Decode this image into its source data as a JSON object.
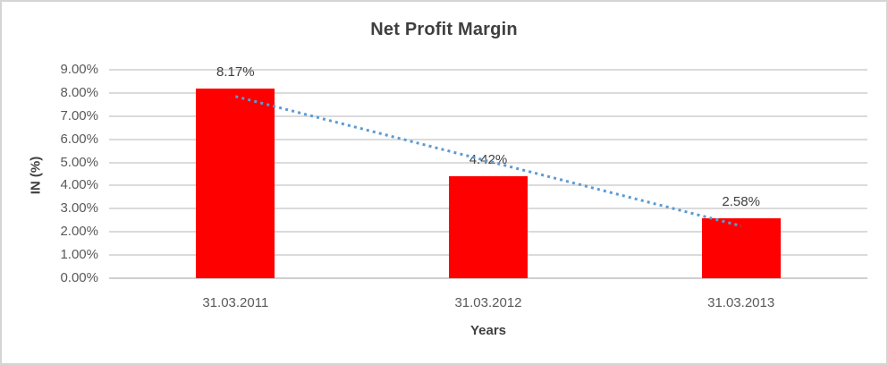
{
  "chart_data": {
    "type": "bar",
    "title": "Net Profit Margin",
    "xlabel": "Years",
    "ylabel": "IN (%)",
    "categories": [
      "31.03.2011",
      "31.03.2012",
      "31.03.2013"
    ],
    "values": [
      8.17,
      4.42,
      2.58
    ],
    "data_labels": [
      "8.17%",
      "4.42%",
      "2.58%"
    ],
    "y_ticks": [
      "0.00%",
      "1.00%",
      "2.00%",
      "3.00%",
      "4.00%",
      "5.00%",
      "6.00%",
      "7.00%",
      "8.00%",
      "9.00%"
    ],
    "ylim": [
      0,
      9
    ],
    "grid": true,
    "legend": "none",
    "trendline": {
      "type": "linear",
      "style": "dotted",
      "start_value": 7.85,
      "end_value": 2.26
    },
    "colors": {
      "bar": "#FF0000",
      "trendline": "#5B9BD5",
      "gridline": "#DBDBDB",
      "axis_line": "#CFCFCF",
      "title_text": "#3F3F3F",
      "axis_title_text": "#404040",
      "tick_text": "#595959",
      "data_label_text": "#404040",
      "frame_border": "#D5D5D5"
    }
  }
}
